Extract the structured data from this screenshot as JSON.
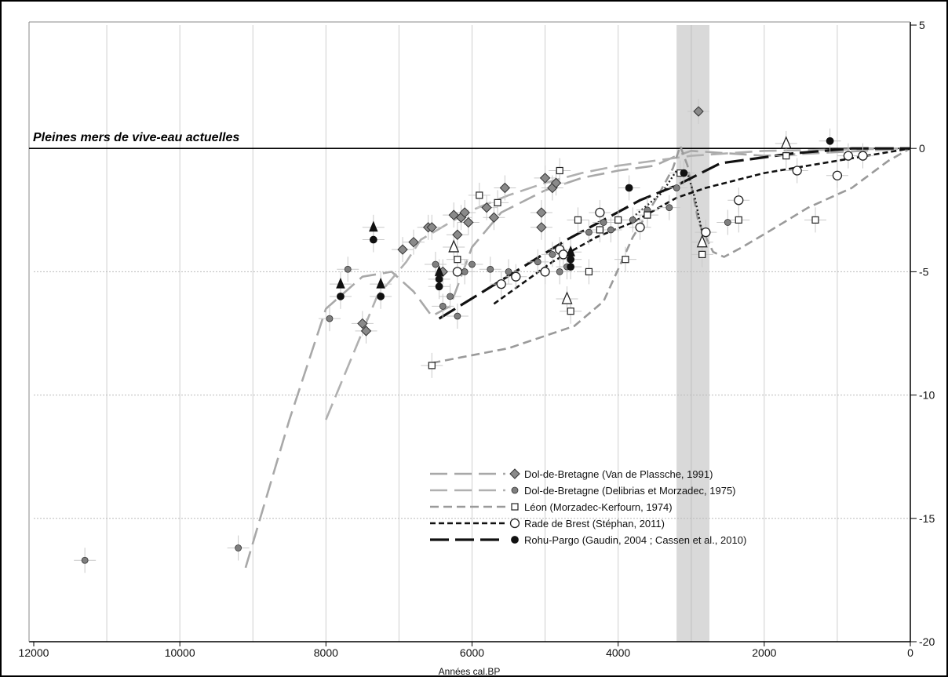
{
  "chart_data": {
    "type": "scatter",
    "xlabel": "Années cal.BP",
    "ylabel": "",
    "xlim": [
      12000,
      0
    ],
    "ylim": [
      -20,
      5
    ],
    "x_ticks": [
      12000,
      10000,
      8000,
      6000,
      4000,
      2000,
      0
    ],
    "y_ticks": [
      5,
      0,
      -5,
      -10,
      -15,
      -20
    ],
    "x_reversed": true,
    "y_axis_position": "right",
    "grid": true,
    "reference_line": {
      "y": 0,
      "label": "Pleines mers de vive-eau actuelles"
    },
    "highlight_band": {
      "x_from": 3200,
      "x_to": 2750,
      "center": 3000,
      "color": "#d9d9d9"
    },
    "legend_position": "bottom-right",
    "legend_entries": [
      {
        "label": "Dol-de-Bretagne (Van de Plassche, 1991)",
        "series": "dol_vdp"
      },
      {
        "label": "Dol-de-Bretagne (Delibrias et Morzadec, 1975)",
        "series": "dol_dm"
      },
      {
        "label": "Léon (Morzadec-Kerfourn, 1974)",
        "series": "leon"
      },
      {
        "label": "Rade de Brest (Stéphan, 2011)",
        "series": "brest"
      },
      {
        "label": "Rohu-Pargo (Gaudin, 2004 ; Cassen et al., 2010)",
        "series": "rohu"
      }
    ],
    "series": [
      {
        "id": "dol_vdp",
        "marker": "diamond",
        "color": "#8a8a8a",
        "points": [
          [
            6950,
            -4.1
          ],
          [
            6800,
            -3.8
          ],
          [
            6600,
            -3.2
          ],
          [
            6550,
            -3.2
          ],
          [
            6250,
            -2.7
          ],
          [
            6150,
            -2.8
          ],
          [
            6100,
            -2.6
          ],
          [
            6050,
            -3.0
          ],
          [
            6200,
            -3.5
          ],
          [
            5800,
            -2.4
          ],
          [
            5550,
            -1.6
          ],
          [
            5050,
            -2.6
          ],
          [
            5000,
            -1.2
          ],
          [
            4900,
            -1.6
          ],
          [
            4850,
            -1.4
          ],
          [
            5050,
            -3.2
          ],
          [
            5700,
            -2.8
          ],
          [
            6400,
            -5.0
          ],
          [
            7500,
            -7.1
          ],
          [
            7450,
            -7.4
          ],
          [
            2900,
            1.5
          ]
        ]
      },
      {
        "id": "dol_dm",
        "marker": "circle-small",
        "color": "#7f7f7f",
        "points": [
          [
            11300,
            -16.7
          ],
          [
            9200,
            -16.2
          ],
          [
            7950,
            -6.9
          ],
          [
            7700,
            -4.9
          ],
          [
            6500,
            -4.7
          ],
          [
            6400,
            -6.4
          ],
          [
            6300,
            -6.0
          ],
          [
            6200,
            -6.8
          ],
          [
            6100,
            -5.0
          ],
          [
            6000,
            -4.7
          ],
          [
            5750,
            -4.9
          ],
          [
            5500,
            -5.0
          ],
          [
            5100,
            -4.6
          ],
          [
            4900,
            -4.3
          ],
          [
            4800,
            -5.0
          ],
          [
            4700,
            -4.8
          ],
          [
            4400,
            -3.4
          ],
          [
            4200,
            -3.0
          ],
          [
            4100,
            -3.3
          ],
          [
            3800,
            -2.9
          ],
          [
            3600,
            -2.5
          ],
          [
            3300,
            -2.4
          ],
          [
            3200,
            -1.6
          ],
          [
            2500,
            -3.0
          ]
        ]
      },
      {
        "id": "leon",
        "marker": "square",
        "color": "#ffffff",
        "points": [
          [
            6550,
            -8.8
          ],
          [
            6200,
            -4.5
          ],
          [
            5900,
            -1.9
          ],
          [
            5650,
            -2.2
          ],
          [
            4800,
            -0.9
          ],
          [
            4650,
            -6.6
          ],
          [
            4550,
            -2.9
          ],
          [
            4400,
            -5.0
          ],
          [
            4250,
            -3.3
          ],
          [
            4000,
            -2.9
          ],
          [
            3900,
            -4.5
          ],
          [
            3600,
            -2.7
          ],
          [
            3150,
            -1.0
          ],
          [
            2850,
            -4.3
          ],
          [
            2350,
            -2.9
          ],
          [
            1700,
            -0.3
          ],
          [
            1300,
            -2.9
          ]
        ]
      },
      {
        "id": "brest",
        "marker": "circle-open",
        "color": "#ffffff",
        "points": [
          [
            6200,
            -5.0
          ],
          [
            5600,
            -5.5
          ],
          [
            5400,
            -5.2
          ],
          [
            5000,
            -5.0
          ],
          [
            4800,
            -4.1
          ],
          [
            4750,
            -4.3
          ],
          [
            4250,
            -2.6
          ],
          [
            3700,
            -3.2
          ],
          [
            2800,
            -3.4
          ],
          [
            2350,
            -2.1
          ],
          [
            1550,
            -0.9
          ],
          [
            1000,
            -1.1
          ],
          [
            850,
            -0.3
          ],
          [
            650,
            -0.3
          ]
        ]
      },
      {
        "id": "rohu",
        "marker": "circle-filled",
        "color": "#111111",
        "points": [
          [
            7800,
            -6.0
          ],
          [
            7350,
            -3.7
          ],
          [
            7250,
            -6.0
          ],
          [
            6450,
            -5.6
          ],
          [
            6450,
            -5.3
          ],
          [
            4650,
            -4.8
          ],
          [
            4650,
            -4.5
          ],
          [
            3850,
            -1.6
          ],
          [
            3100,
            -1.0
          ],
          [
            1100,
            0.3
          ]
        ]
      },
      {
        "id": "tri_filled",
        "marker": "triangle-filled",
        "color": "#111111",
        "points": [
          [
            7800,
            -5.5
          ],
          [
            7350,
            -3.2
          ],
          [
            7250,
            -5.5
          ],
          [
            6450,
            -5.0
          ],
          [
            4650,
            -4.2
          ]
        ]
      },
      {
        "id": "tri_open",
        "marker": "triangle-open",
        "color": "#ffffff",
        "points": [
          [
            6250,
            -4.0
          ],
          [
            4700,
            -6.1
          ],
          [
            2850,
            -3.8
          ],
          [
            1700,
            0.2
          ]
        ]
      }
    ],
    "curves": [
      {
        "id": "dol_vdp_curve",
        "style": "long-dash",
        "color": "#a8a8a8",
        "points": [
          [
            9100,
            -17.0
          ],
          [
            8500,
            -11.0
          ],
          [
            8000,
            -6.5
          ],
          [
            7500,
            -5.2
          ],
          [
            7100,
            -5.0
          ],
          [
            6800,
            -5.8
          ],
          [
            6550,
            -6.8
          ],
          [
            6300,
            -6.4
          ],
          [
            6000,
            -4.0
          ],
          [
            5600,
            -2.6
          ],
          [
            5000,
            -1.7
          ],
          [
            4500,
            -1.2
          ],
          [
            4000,
            -0.9
          ],
          [
            3500,
            -0.7
          ],
          [
            3200,
            -0.3
          ],
          [
            3000,
            -0.1
          ],
          [
            2000,
            -0.3
          ],
          [
            0,
            0
          ]
        ]
      },
      {
        "id": "dol_dm_curve",
        "style": "long-dash",
        "color": "#b0b0b0",
        "points": [
          [
            8000,
            -11.0
          ],
          [
            7300,
            -6.0
          ],
          [
            6900,
            -4.6
          ],
          [
            6700,
            -3.7
          ],
          [
            6300,
            -3.0
          ],
          [
            6000,
            -2.5
          ],
          [
            5500,
            -1.9
          ],
          [
            5000,
            -1.4
          ],
          [
            4500,
            -1.0
          ],
          [
            4000,
            -0.7
          ],
          [
            3000,
            -0.3
          ],
          [
            2000,
            -0.1
          ],
          [
            0,
            0
          ]
        ]
      },
      {
        "id": "leon_curve",
        "style": "dash",
        "color": "#9a9a9a",
        "points": [
          [
            6550,
            -8.7
          ],
          [
            5500,
            -8.1
          ],
          [
            4600,
            -7.2
          ],
          [
            4200,
            -6.2
          ],
          [
            3800,
            -3.6
          ],
          [
            3450,
            -1.9
          ],
          [
            3250,
            -0.8
          ],
          [
            3150,
            0.1
          ],
          [
            3050,
            -0.7
          ],
          [
            2900,
            -3.0
          ],
          [
            2700,
            -4.2
          ],
          [
            2550,
            -4.4
          ],
          [
            2300,
            -4.0
          ],
          [
            1900,
            -3.3
          ],
          [
            1400,
            -2.4
          ],
          [
            800,
            -1.6
          ],
          [
            300,
            -0.5
          ],
          [
            0,
            0
          ]
        ]
      },
      {
        "id": "brest_curve",
        "style": "short-dash",
        "color": "#111111",
        "points": [
          [
            5700,
            -6.3
          ],
          [
            4900,
            -4.6
          ],
          [
            4300,
            -3.6
          ],
          [
            3800,
            -3.0
          ],
          [
            3200,
            -2.0
          ],
          [
            2800,
            -1.6
          ],
          [
            2000,
            -1.0
          ],
          [
            1000,
            -0.5
          ],
          [
            0,
            0
          ]
        ]
      },
      {
        "id": "brest_dotted",
        "style": "dotted",
        "color": "#222222",
        "points": [
          [
            3800,
            -2.8
          ],
          [
            3400,
            -1.8
          ],
          [
            3200,
            -0.9
          ],
          [
            3050,
            -1.0
          ],
          [
            2950,
            -2.0
          ],
          [
            2850,
            -3.4
          ]
        ]
      },
      {
        "id": "rohu_curve",
        "style": "long-dash-heavy",
        "color": "#111111",
        "points": [
          [
            6450,
            -6.9
          ],
          [
            5900,
            -5.9
          ],
          [
            5300,
            -4.8
          ],
          [
            4700,
            -3.7
          ],
          [
            4200,
            -2.9
          ],
          [
            3700,
            -2.1
          ],
          [
            3200,
            -1.5
          ],
          [
            2600,
            -0.6
          ],
          [
            1600,
            -0.2
          ],
          [
            800,
            0.0
          ],
          [
            0,
            0
          ]
        ]
      }
    ]
  }
}
